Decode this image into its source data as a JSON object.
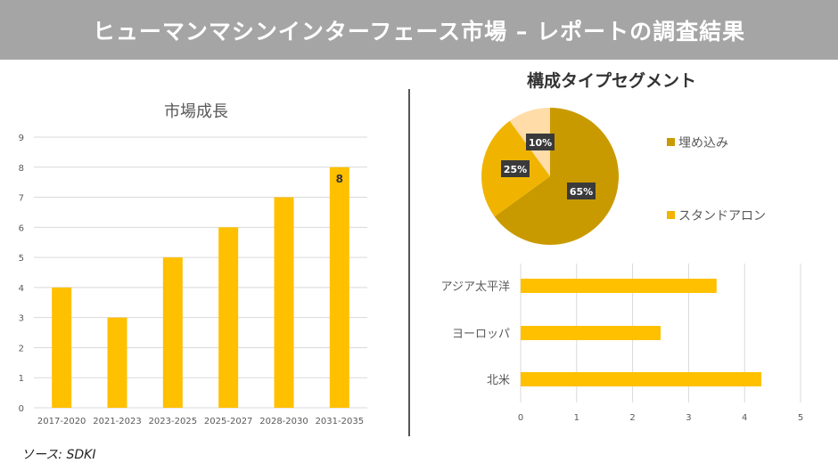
{
  "header": {
    "title": "ヒューマンマシンインターフェース市場 – レポートの調査結果"
  },
  "source": "ソース: SDKI",
  "colors": {
    "bar": "#ffc000",
    "embedded": "#c99a00",
    "standalone": "#f0b400",
    "other": "#ffdca8"
  },
  "chart_data": [
    {
      "type": "bar",
      "title": "市場成長",
      "categories": [
        "2017-2020",
        "2021-2023",
        "2023-2025",
        "2025-2027",
        "2028-2030",
        "2031-2035"
      ],
      "values": [
        4,
        3,
        5,
        6,
        7,
        8
      ],
      "data_labels": {
        "2031-2035": "8"
      },
      "ylim": [
        0,
        9
      ],
      "yticks": [
        0,
        1,
        2,
        3,
        4,
        5,
        6,
        7,
        8,
        9
      ],
      "grid": true
    },
    {
      "type": "pie",
      "title": "構成タイプセグメント",
      "slices": [
        {
          "label": "埋め込み",
          "value": 65,
          "text": "65%"
        },
        {
          "label": "スタンドアロン",
          "value": 25,
          "text": "25%"
        },
        {
          "label": "",
          "value": 10,
          "text": "10%"
        }
      ],
      "legend": [
        "埋め込み",
        "スタンドアロン"
      ],
      "legend_position": "right"
    },
    {
      "type": "bar",
      "orientation": "horizontal",
      "categories": [
        "アジア太平洋",
        "ヨーロッパ",
        "北米"
      ],
      "values": [
        3.5,
        2.5,
        4.3
      ],
      "xlim": [
        0,
        5
      ],
      "xticks": [
        0,
        1,
        2,
        3,
        4,
        5
      ],
      "grid": true
    }
  ]
}
